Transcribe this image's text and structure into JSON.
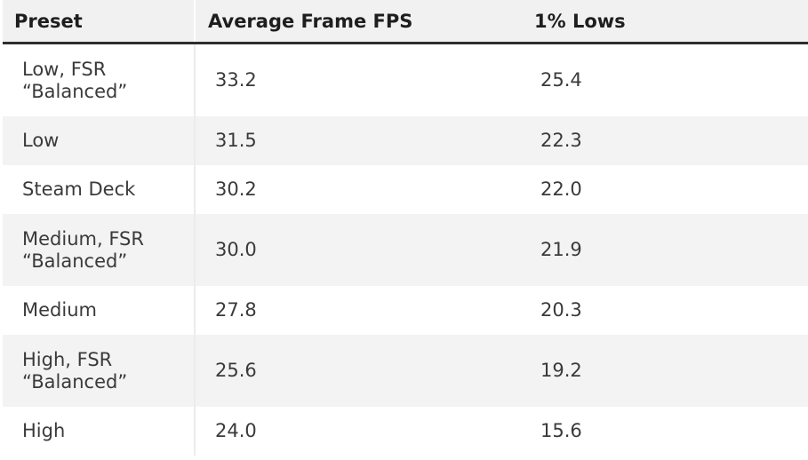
{
  "table": {
    "headers": {
      "preset": "Preset",
      "avg_fps": "Average Frame FPS",
      "lows": "1% Lows"
    },
    "rows": [
      {
        "preset_line1": "Low, FSR",
        "preset_line2": "“Balanced”",
        "avg_fps": "33.2",
        "lows": "25.4"
      },
      {
        "preset_line1": "Low",
        "preset_line2": "",
        "avg_fps": "31.5",
        "lows": "22.3"
      },
      {
        "preset_line1": "Steam Deck",
        "preset_line2": "",
        "avg_fps": "30.2",
        "lows": "22.0"
      },
      {
        "preset_line1": "Medium, FSR",
        "preset_line2": "“Balanced”",
        "avg_fps": "30.0",
        "lows": "21.9"
      },
      {
        "preset_line1": "Medium",
        "preset_line2": "",
        "avg_fps": "27.8",
        "lows": "20.3"
      },
      {
        "preset_line1": "High, FSR",
        "preset_line2": "“Balanced”",
        "avg_fps": "25.6",
        "lows": "19.2"
      },
      {
        "preset_line1": "High",
        "preset_line2": "",
        "avg_fps": "24.0",
        "lows": "15.6"
      }
    ]
  }
}
